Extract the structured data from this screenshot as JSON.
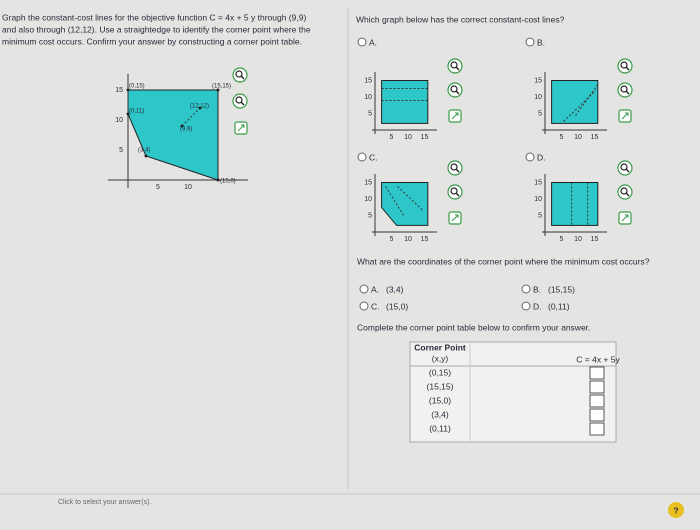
{
  "left": {
    "question": [
      "Graph the constant-cost lines for the objective function C = 4x + 5 y through (9,9)",
      "and also through (12,12). Use a straightedge to identify the corner point where the",
      "minimum cost occurs. Confirm your answer by constructing a corner point table."
    ],
    "graph": {
      "y_ticks": [
        "15",
        "10",
        "5"
      ],
      "x_ticks": [
        "5",
        "10"
      ],
      "points": [
        "(0,15)",
        "(15,15)",
        "(0,11)",
        "(12,12)",
        "(9,9)",
        "(3,4)",
        "(15,0)"
      ]
    }
  },
  "question1": {
    "text": "Which graph below has the correct constant-cost lines?",
    "options": [
      {
        "label": "A.",
        "y_ticks": [
          "15",
          "10",
          "5"
        ],
        "x_ticks": [
          "5",
          "10",
          "15"
        ]
      },
      {
        "label": "B.",
        "y_ticks": [
          "15",
          "10",
          "5"
        ],
        "x_ticks": [
          "5",
          "10",
          "15"
        ]
      },
      {
        "label": "C.",
        "y_ticks": [
          "15",
          "10",
          "5"
        ],
        "x_ticks": [
          "5",
          "10",
          "15"
        ]
      },
      {
        "label": "D.",
        "y_ticks": [
          "15",
          "10",
          "5"
        ],
        "x_ticks": [
          "5",
          "10",
          "15"
        ]
      }
    ]
  },
  "question2": {
    "text": "What are the coordinates of the corner point where the minimum cost occurs?",
    "options": [
      {
        "label": "A.",
        "answer": "(3,4)"
      },
      {
        "label": "B.",
        "answer": "(15,15)"
      },
      {
        "label": "C.",
        "answer": "(15,0)"
      },
      {
        "label": "D.",
        "answer": "(0,11)"
      }
    ]
  },
  "table": {
    "instruction": "Complete the corner point table below to confirm your answer.",
    "headers": [
      "Corner Point",
      "(x,y)",
      "C = 4x + 5y"
    ],
    "rows": [
      "(0,15)",
      "(15,15)",
      "(15,0)",
      "(3,4)",
      "(0,11)"
    ]
  },
  "footer": "Click to select your answer(s).",
  "help": "?"
}
